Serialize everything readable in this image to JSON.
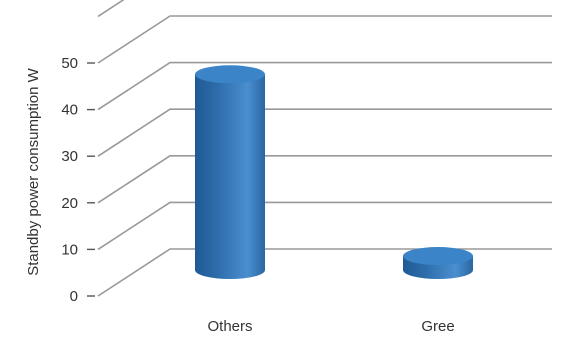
{
  "chart_data": {
    "type": "bar",
    "title": "",
    "xlabel": "",
    "ylabel": "Standby power consumption W",
    "categories": [
      "Others",
      "Gree"
    ],
    "values": [
      42,
      3
    ],
    "ylim": [
      0,
      50
    ],
    "yticks": [
      0,
      10,
      20,
      30,
      40,
      50
    ],
    "grid": true,
    "legend": "none",
    "style": "3d-cylinder",
    "colors": {
      "bar": "#2f6fad",
      "bar_highlight": "#4a8fd0",
      "bar_top": "#3b84c8",
      "grid": "#999999"
    }
  }
}
